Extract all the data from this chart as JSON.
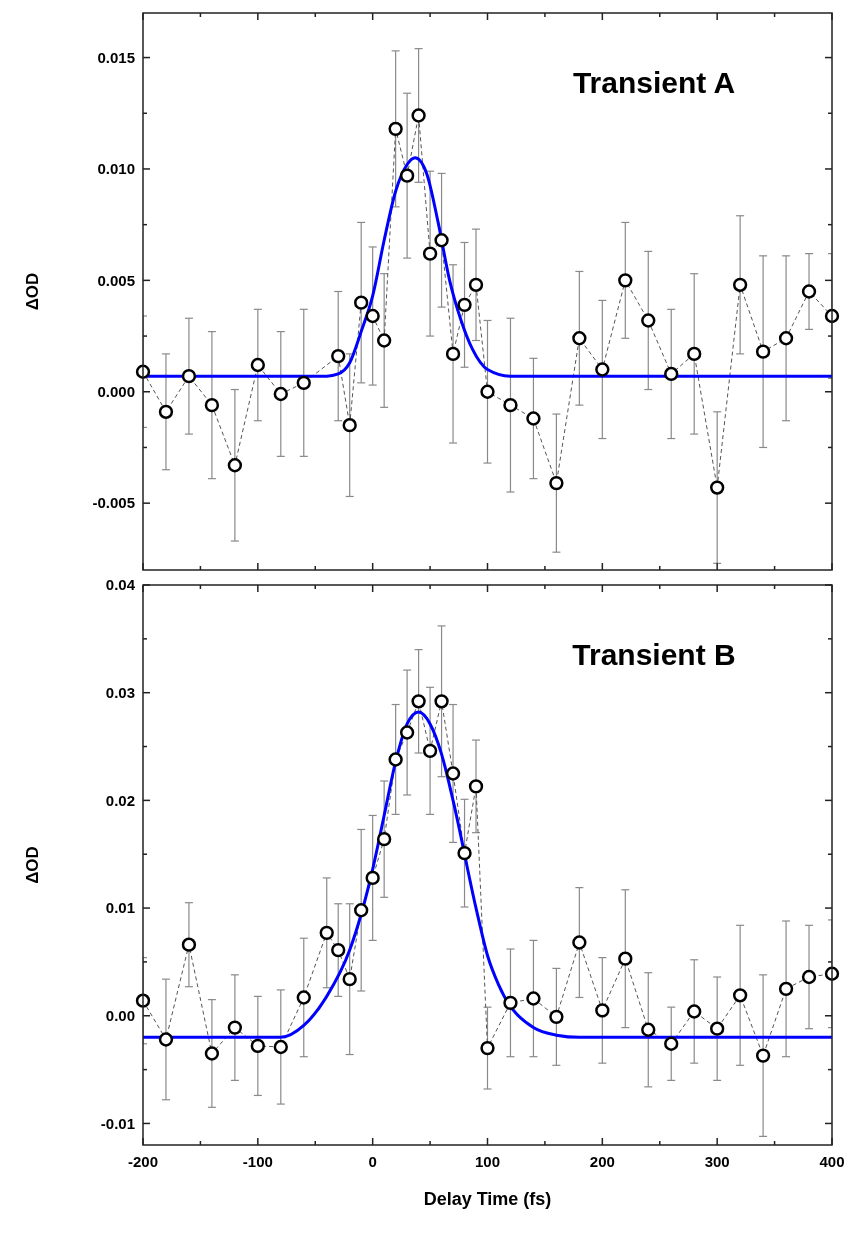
{
  "chart_data": [
    {
      "type": "line",
      "title": "Transient A",
      "ylabel": "ΔOD",
      "marker": "circle",
      "line_style": "dashed",
      "tick_labels": "y",
      "x": [
        -200,
        -180,
        -160,
        -140,
        -120,
        -100,
        -80,
        -60,
        -30,
        -20,
        -10,
        0,
        10,
        20,
        30,
        40,
        50,
        60,
        70,
        80,
        90,
        100,
        120,
        140,
        160,
        180,
        200,
        220,
        240,
        260,
        280,
        300,
        320,
        340,
        360,
        380,
        400
      ],
      "xlim": [
        -200,
        400
      ],
      "xticks": [
        -200,
        {
          "value": -150,
          "label": null
        },
        -100,
        {
          "value": -50,
          "label": null
        },
        0,
        {
          "value": 50,
          "label": null
        },
        100,
        {
          "value": 150,
          "label": null
        },
        200,
        {
          "value": 250,
          "label": null
        },
        300,
        {
          "value": 350,
          "label": null
        },
        400
      ],
      "ylim": [
        -0.008,
        0.017
      ],
      "yticks": [
        {
          "value": -0.005,
          "label": "-0.005"
        },
        {
          "value": -0.0025,
          "label": null
        },
        {
          "value": 0,
          "label": "0.000"
        },
        {
          "value": 0.0025,
          "label": null
        },
        {
          "value": 0.005,
          "label": "0.005"
        },
        {
          "value": 0.0075,
          "label": null
        },
        {
          "value": 0.01,
          "label": "0.010"
        },
        {
          "value": 0.0125,
          "label": null
        },
        {
          "value": 0.015,
          "label": "0.015"
        }
      ],
      "series": [
        {
          "color": "#000000",
          "values": [
            0.0009,
            -0.0009,
            0.0007,
            -0.0006,
            -0.0033,
            0.0012,
            -0.0001,
            0.0004,
            0.0016,
            -0.0015,
            0.004,
            0.0034,
            0.0023,
            0.0118,
            0.0097,
            0.0124,
            0.0062,
            0.0068,
            0.0017,
            0.0039,
            0.0048,
            0.0,
            -0.0006,
            -0.0012,
            -0.0041,
            0.0024,
            0.001,
            0.005,
            0.0032,
            0.0008,
            0.0017,
            -0.0043,
            0.0048,
            0.0018,
            0.0024,
            0.0045,
            0.0034
          ],
          "errors": [
            0.0025,
            0.0026,
            0.0026,
            0.0033,
            0.0034,
            0.0025,
            0.0028,
            0.0033,
            0.0029,
            0.0032,
            0.0036,
            0.0031,
            0.003,
            0.0035,
            0.0037,
            0.003,
            0.0037,
            0.003,
            0.004,
            0.0028,
            0.0025,
            0.0032,
            0.0039,
            0.0027,
            0.0031,
            0.003,
            0.0031,
            0.0026,
            0.0031,
            0.0029,
            0.0036,
            0.0034,
            0.0031,
            0.0043,
            0.0037,
            0.0017,
            0.0028
          ]
        },
        {
          "type": "line",
          "color": "#0000ff",
          "marker": "none",
          "line_style": "solid",
          "x": [
            -200,
            -40,
            -30,
            -20,
            -10,
            0,
            10,
            20,
            30,
            37,
            47,
            57,
            67,
            77,
            87,
            100,
            120,
            400
          ],
          "values": [
            0.0007,
            0.0007,
            0.0008,
            0.0013,
            0.0027,
            0.0043,
            0.0068,
            0.009,
            0.0102,
            0.0105,
            0.0098,
            0.0076,
            0.005,
            0.0032,
            0.0019,
            0.001,
            0.0007,
            0.0007
          ]
        }
      ]
    },
    {
      "type": "line",
      "title": "Transient B",
      "xlabel": "Delay Time (fs)",
      "ylabel": "ΔOD",
      "marker": "circle",
      "line_style": "dashed",
      "x": [
        -200,
        -180,
        -160,
        -140,
        -120,
        -100,
        -80,
        -60,
        -40,
        -30,
        -20,
        -10,
        0,
        10,
        20,
        30,
        40,
        50,
        60,
        70,
        80,
        90,
        100,
        120,
        140,
        160,
        180,
        200,
        220,
        240,
        260,
        280,
        300,
        320,
        340,
        360,
        380,
        400
      ],
      "xlim": [
        -200,
        400
      ],
      "xticks": [
        -200,
        {
          "value": -150,
          "label": null
        },
        -100,
        {
          "value": -50,
          "label": null
        },
        0,
        {
          "value": 50,
          "label": null
        },
        100,
        {
          "value": 150,
          "label": null
        },
        200,
        {
          "value": 250,
          "label": null
        },
        300,
        {
          "value": 350,
          "label": null
        },
        400
      ],
      "ylim": [
        -0.012,
        0.04
      ],
      "yticks": [
        {
          "value": -0.01,
          "label": "-0.01"
        },
        {
          "value": -0.005,
          "label": null
        },
        {
          "value": 0,
          "label": "0.00"
        },
        {
          "value": 0.005,
          "label": null
        },
        {
          "value": 0.01,
          "label": "0.01"
        },
        {
          "value": 0.015,
          "label": null
        },
        {
          "value": 0.02,
          "label": "0.02"
        },
        {
          "value": 0.025,
          "label": null
        },
        {
          "value": 0.03,
          "label": "0.03"
        },
        {
          "value": 0.035,
          "label": null
        },
        {
          "value": 0.04,
          "label": "0.04"
        }
      ],
      "series": [
        {
          "color": "#000000",
          "values": [
            0.0014,
            -0.0022,
            0.0066,
            -0.0035,
            -0.0011,
            -0.0028,
            -0.0029,
            0.0017,
            0.0077,
            0.0061,
            0.0034,
            0.0098,
            0.0128,
            0.0164,
            0.0238,
            0.0263,
            0.0292,
            0.0246,
            0.0292,
            0.0225,
            0.0151,
            0.0213,
            -0.003,
            0.0012,
            0.0016,
            -0.0001,
            0.0068,
            0.0005,
            0.0053,
            -0.0013,
            -0.0026,
            0.0004,
            -0.0012,
            0.0019,
            -0.0037,
            0.0025,
            0.0036,
            0.0039
          ],
          "errors": [
            0.004,
            0.0056,
            0.0039,
            0.005,
            0.0049,
            0.0046,
            0.0053,
            0.0055,
            0.0051,
            0.0043,
            0.007,
            0.0075,
            0.0058,
            0.0054,
            0.0051,
            0.0058,
            0.0048,
            0.0059,
            0.007,
            0.0064,
            0.005,
            0.0043,
            0.0038,
            0.005,
            0.0054,
            0.0045,
            0.0051,
            0.0049,
            0.0064,
            0.0053,
            0.0034,
            0.0048,
            0.0048,
            0.0065,
            0.0075,
            0.0063,
            0.0048,
            0.005
          ]
        },
        {
          "type": "line",
          "color": "#0000ff",
          "marker": "none",
          "line_style": "solid",
          "x": [
            -200,
            -80,
            -60,
            -40,
            -20,
            0,
            10,
            20,
            30,
            40,
            50,
            60,
            70,
            90,
            100,
            110,
            140,
            160,
            180,
            400
          ],
          "values": [
            -0.002,
            -0.002,
            -0.0009,
            0.0018,
            0.0061,
            0.0136,
            0.0186,
            0.0236,
            0.0271,
            0.0282,
            0.0271,
            0.0243,
            0.02,
            0.01,
            0.0056,
            0.0028,
            -0.0011,
            -0.0018,
            -0.002,
            -0.002
          ]
        }
      ]
    }
  ]
}
